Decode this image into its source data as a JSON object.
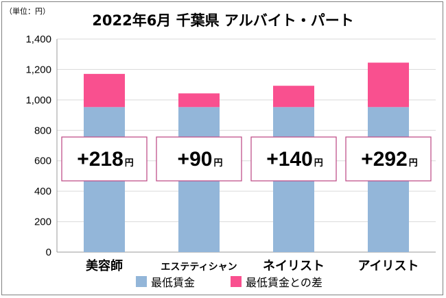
{
  "chart_data": {
    "type": "bar",
    "stacked": true,
    "title": "2022年6月 千葉県 アルバイト・パート",
    "unit_label": "（単位：円）",
    "categories": [
      "美容師",
      "エステティシャン",
      "ネイリスト",
      "アイリスト"
    ],
    "series": [
      {
        "name": "最低賃金",
        "values": [
          953,
          953,
          953,
          953
        ],
        "color": "#93b6d9"
      },
      {
        "name": "最低賃金との差",
        "values": [
          218,
          90,
          140,
          292
        ],
        "color": "#f9508f"
      }
    ],
    "difference_labels": [
      "+218",
      "+90",
      "+140",
      "+292"
    ],
    "difference_suffix": "円",
    "ylim": [
      0,
      1400
    ],
    "yticks": [
      "0",
      "200",
      "400",
      "600",
      "800",
      "1,000",
      "1,200",
      "1,400"
    ],
    "grid": true,
    "legend_position": "bottom",
    "label_box_border_color": "#c0508a"
  }
}
